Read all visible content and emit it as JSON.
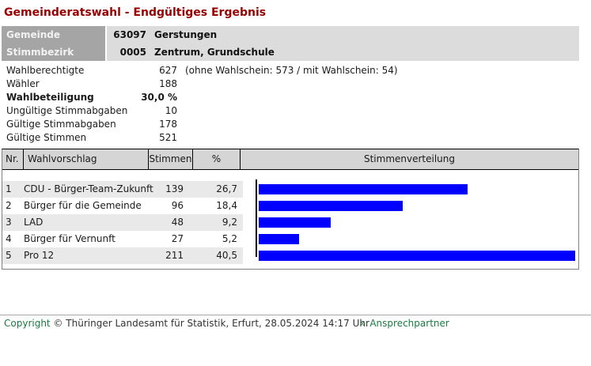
{
  "page": {
    "title": "Gemeinderatswahl - Endgültiges Ergebnis"
  },
  "info": {
    "rows": [
      {
        "label": "Gemeinde",
        "code": "63097",
        "name": "Gerstungen"
      },
      {
        "label": "Stimmbezirk",
        "code": "0005",
        "name": "Zentrum, Grundschule"
      }
    ]
  },
  "stats": {
    "rows": [
      {
        "label": "Wahlberechtigte",
        "value": "627",
        "note": "(ohne Wahlschein: 573 / mit Wahlschein: 54)"
      },
      {
        "label": "Wähler",
        "value": "188",
        "note": ""
      },
      {
        "label": "Wahlbeteiligung",
        "value": "30,0 %",
        "note": ""
      },
      {
        "label": "Ungültige Stimmabgaben",
        "value": "10",
        "note": ""
      },
      {
        "label": "Gültige Stimmabgaben",
        "value": "178",
        "note": ""
      },
      {
        "label": "Gültige Stimmen",
        "value": "521",
        "note": ""
      }
    ]
  },
  "results": {
    "headers": {
      "nr": "Nr.",
      "proposal": "Wahlvorschlag",
      "votes": "Stimmen",
      "percent": "%",
      "distribution": "Stimmenverteilung"
    },
    "scale_max": 40.5,
    "rows": [
      {
        "nr": "1",
        "proposal": "CDU - Bürger-Team-Zukunft",
        "votes": "139",
        "percent": "26,7",
        "pct": 26.7
      },
      {
        "nr": "2",
        "proposal": "Bürger für die Gemeinde",
        "votes": "96",
        "percent": "18,4",
        "pct": 18.4
      },
      {
        "nr": "3",
        "proposal": "LAD",
        "votes": "48",
        "percent": "9,2",
        "pct": 9.2
      },
      {
        "nr": "4",
        "proposal": "Bürger für Vernunft",
        "votes": "27",
        "percent": "5,2",
        "pct": 5.2
      },
      {
        "nr": "5",
        "proposal": "Pro 12",
        "votes": "211",
        "percent": "40,5",
        "pct": 40.5
      }
    ]
  },
  "chart_data": {
    "type": "bar",
    "orientation": "horizontal",
    "title": "Stimmenverteilung",
    "categories": [
      "CDU - Bürger-Team-Zukunft",
      "Bürger für die Gemeinde",
      "LAD",
      "Bürger für Vernunft",
      "Pro 12"
    ],
    "values": [
      26.7,
      18.4,
      9.2,
      5.2,
      40.5
    ],
    "votes": [
      139,
      96,
      48,
      27,
      211
    ],
    "unit": "%",
    "xlim": [
      0,
      40.5
    ],
    "bar_color": "#0000ff",
    "legend": "none",
    "grid": false
  },
  "footer": {
    "copyright_link": "Copyright",
    "copyright_text": "© Thüringer Landesamt für Statistik, Erfurt, 28.05.2024 14:17 Uhr",
    "contact_arrow": "»",
    "contact_label": "Ansprechpartner"
  },
  "colors": {
    "title_red": "#990000",
    "bar_blue": "#0000ff",
    "link_green": "#1a7a42",
    "info_label_gray": "#a5a5a5",
    "info_value_gray": "#dcdcdc",
    "table_header_gray": "#d5d5d5",
    "row_stripe_gray": "#e9e9e9"
  }
}
